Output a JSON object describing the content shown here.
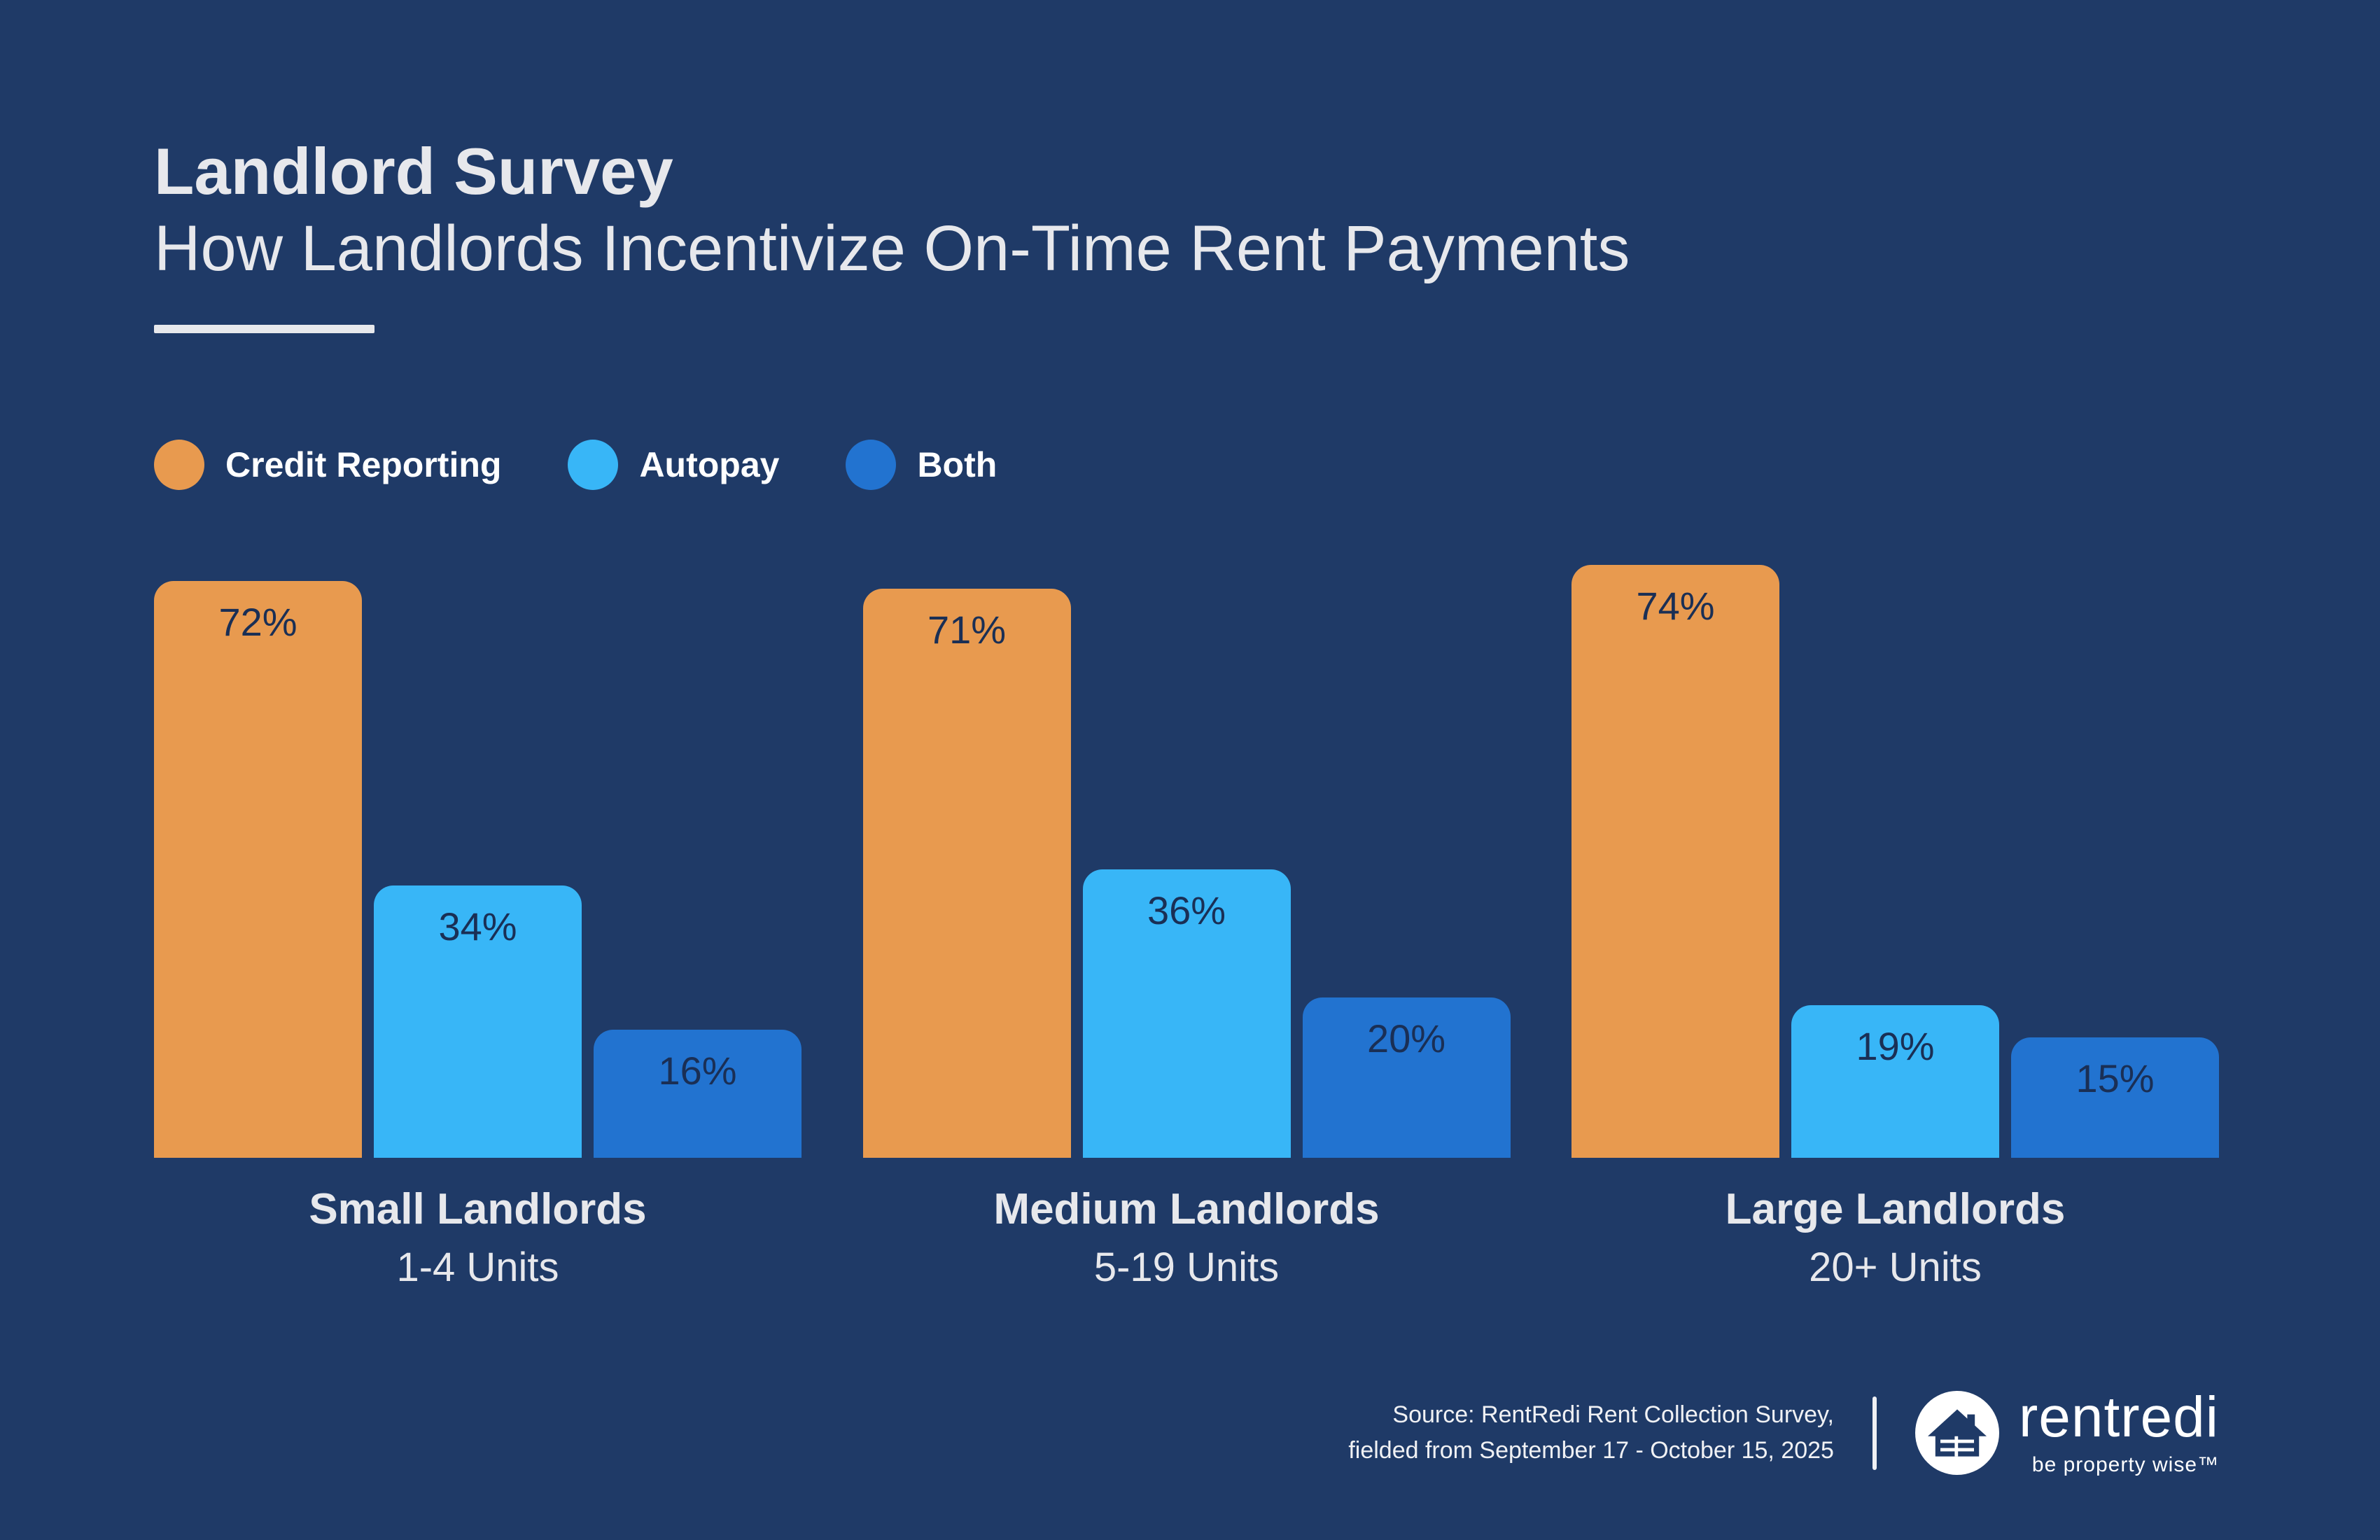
{
  "header": {
    "title": "Landlord Survey",
    "subtitle": "How Landlords Incentivize On-Time Rent Payments"
  },
  "legend": [
    {
      "label": "Credit Reporting",
      "color": "#E89A4F"
    },
    {
      "label": "Autopay",
      "color": "#38B6F7"
    },
    {
      "label": "Both",
      "color": "#2273D0"
    }
  ],
  "chart_data": {
    "type": "bar",
    "title": "Landlord Survey — How Landlords Incentivize On-Time Rent Payments",
    "categories": [
      "Small Landlords",
      "Medium Landlords",
      "Large Landlords"
    ],
    "category_sublabels": [
      "1-4 Units",
      "5-19 Units",
      "20+ Units"
    ],
    "series": [
      {
        "name": "Credit Reporting",
        "color": "#E89A4F",
        "values": [
          72,
          71,
          74
        ]
      },
      {
        "name": "Autopay",
        "color": "#38B6F7",
        "values": [
          34,
          36,
          19
        ]
      },
      {
        "name": "Both",
        "color": "#2273D0",
        "values": [
          16,
          20,
          15
        ]
      }
    ],
    "value_suffix": "%",
    "ylim": [
      0,
      100
    ],
    "grid": false,
    "legend_position": "top-left",
    "value_labels": "inside-top"
  },
  "footer": {
    "source_line1": "Source: RentRedi Rent Collection Survey,",
    "source_line2": "fielded from September 17 - October 15, 2025",
    "brand_name": "rentredi",
    "brand_tagline": "be property wise™"
  },
  "colors": {
    "background": "#1F3A67",
    "text_light": "#E7E8EC",
    "bar_value_label": "#1A2F55"
  }
}
